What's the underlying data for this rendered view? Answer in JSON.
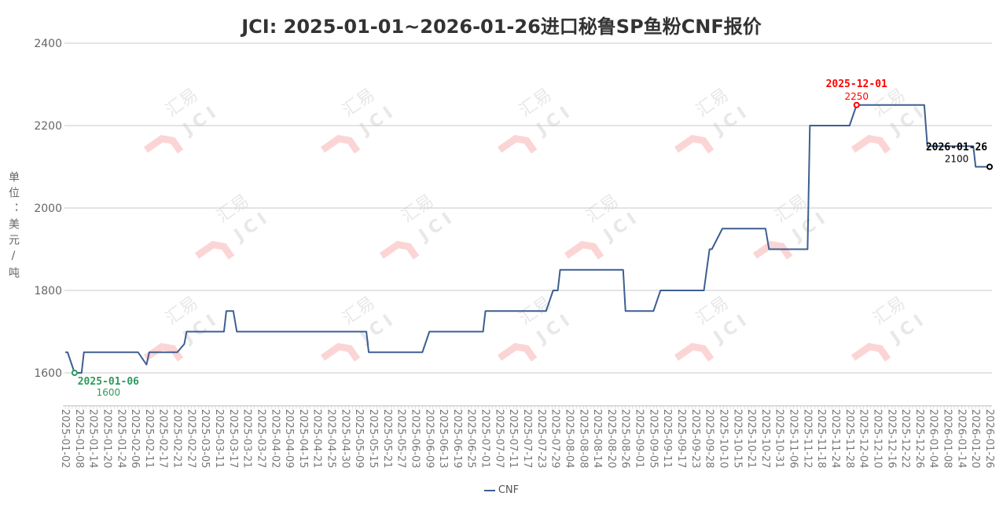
{
  "chart_data": {
    "type": "line",
    "title": "JCI: 2025-01-01~2026-01-26进口秘鲁SP鱼粉CNF报价",
    "ylabel": "单位：美元/吨",
    "xlabel": "",
    "ylim": [
      1520,
      2400
    ],
    "yticks": [
      1600,
      1800,
      2000,
      2200,
      2400
    ],
    "grid": true,
    "legend_position": "bottom",
    "line_color": "#3d5f8f",
    "xticks": [
      "2025-01-02",
      "2025-01-08",
      "2025-01-14",
      "2025-01-20",
      "2025-01-24",
      "2025-02-06",
      "2025-02-11",
      "2025-02-17",
      "2025-02-21",
      "2025-02-27",
      "2025-03-05",
      "2025-03-11",
      "2025-03-17",
      "2025-03-21",
      "2025-03-27",
      "2025-04-02",
      "2025-04-09",
      "2025-04-15",
      "2025-04-21",
      "2025-04-25",
      "2025-04-30",
      "2025-05-09",
      "2025-05-15",
      "2025-05-21",
      "2025-05-27",
      "2025-06-03",
      "2025-06-09",
      "2025-06-13",
      "2025-06-19",
      "2025-06-25",
      "2025-07-01",
      "2025-07-07",
      "2025-07-11",
      "2025-07-17",
      "2025-07-23",
      "2025-07-29",
      "2025-08-04",
      "2025-08-08",
      "2025-08-14",
      "2025-08-20",
      "2025-08-26",
      "2025-09-01",
      "2025-09-05",
      "2025-09-11",
      "2025-09-17",
      "2025-09-23",
      "2025-09-28",
      "2025-10-10",
      "2025-10-15",
      "2025-10-21",
      "2025-10-27",
      "2025-10-31",
      "2025-11-06",
      "2025-11-12",
      "2025-11-18",
      "2025-11-24",
      "2025-11-28",
      "2025-12-04",
      "2025-12-10",
      "2025-12-16",
      "2025-12-22",
      "2025-12-26",
      "2026-01-04",
      "2026-01-08",
      "2026-01-14",
      "2026-01-20",
      "2026-01-26"
    ],
    "series": [
      {
        "name": "CNF",
        "points": [
          [
            "2025-01-02",
            1650
          ],
          [
            "2025-01-03",
            1650
          ],
          [
            "2025-01-06",
            1600
          ],
          [
            "2025-01-09",
            1600
          ],
          [
            "2025-01-10",
            1650
          ],
          [
            "2025-02-07",
            1650
          ],
          [
            "2025-02-10",
            1620
          ],
          [
            "2025-02-11",
            1650
          ],
          [
            "2025-02-21",
            1650
          ],
          [
            "2025-02-24",
            1670
          ],
          [
            "2025-02-25",
            1700
          ],
          [
            "2025-03-13",
            1700
          ],
          [
            "2025-03-14",
            1750
          ],
          [
            "2025-03-17",
            1750
          ],
          [
            "2025-03-18",
            1700
          ],
          [
            "2025-05-12",
            1700
          ],
          [
            "2025-05-13",
            1650
          ],
          [
            "2025-06-06",
            1650
          ],
          [
            "2025-06-09",
            1700
          ],
          [
            "2025-06-30",
            1700
          ],
          [
            "2025-07-01",
            1750
          ],
          [
            "2025-07-25",
            1750
          ],
          [
            "2025-07-28",
            1800
          ],
          [
            "2025-07-30",
            1800
          ],
          [
            "2025-07-31",
            1850
          ],
          [
            "2025-08-25",
            1850
          ],
          [
            "2025-08-26",
            1750
          ],
          [
            "2025-09-05",
            1750
          ],
          [
            "2025-09-08",
            1800
          ],
          [
            "2025-09-26",
            1800
          ],
          [
            "2025-09-28",
            1900
          ],
          [
            "2025-09-30",
            1900
          ],
          [
            "2025-10-09",
            1950
          ],
          [
            "2025-10-27",
            1950
          ],
          [
            "2025-10-28",
            1900
          ],
          [
            "2025-11-12",
            1900
          ],
          [
            "2025-11-13",
            2200
          ],
          [
            "2025-11-28",
            2200
          ],
          [
            "2025-12-01",
            2250
          ],
          [
            "2025-12-29",
            2250
          ],
          [
            "2025-12-31",
            2150
          ],
          [
            "2026-01-19",
            2150
          ],
          [
            "2026-01-20",
            2100
          ],
          [
            "2026-01-26",
            2100
          ]
        ]
      }
    ],
    "annotations": [
      {
        "date": "2025-01-06",
        "value": 1600,
        "label_date": "2025-01-06",
        "label_value": "1600",
        "color": "#2e9a5c",
        "kind": "min"
      },
      {
        "date": "2025-12-01",
        "value": 2250,
        "label_date": "2025-12-01",
        "label_value": "2250",
        "color": "#ff0000",
        "kind": "max"
      },
      {
        "date": "2026-01-26",
        "value": 2100,
        "label_date": "2026-01-26",
        "label_value": "2100",
        "color": "#000000",
        "kind": "last"
      }
    ],
    "legend": [
      "CNF"
    ]
  },
  "watermark": {
    "text_cn": "汇易",
    "text_en": "JCI"
  }
}
